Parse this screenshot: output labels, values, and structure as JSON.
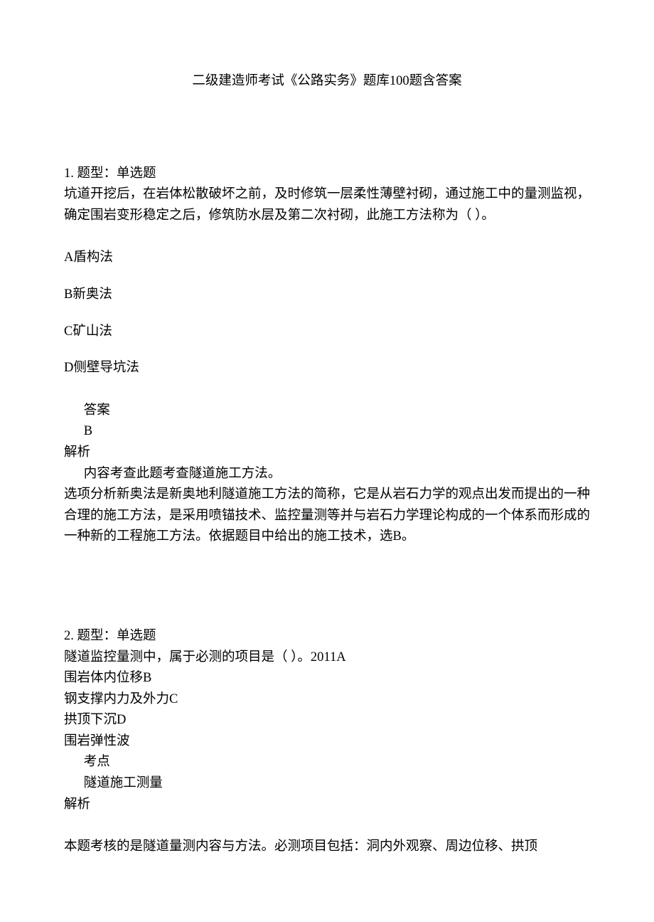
{
  "document": {
    "title": "二级建造师考试《公路实务》题库100题含答案",
    "font_family": "SimSun",
    "font_size_pt": 14,
    "text_color": "#000000",
    "background_color": "#ffffff"
  },
  "questions": [
    {
      "number": "1.",
      "type_label": "题型：单选题",
      "stem": "坑道开挖后，在岩体松散破坏之前，及时修筑一层柔性薄壁衬砌，通过施工中的量测监视，确定围岩变形稳定之后，修筑防水层及第二次衬砌，此施工方法称为（ ）。",
      "options": [
        {
          "letter": "A",
          "text": "盾构法"
        },
        {
          "letter": "B",
          "text": "新奥法"
        },
        {
          "letter": "C",
          "text": "矿山法"
        },
        {
          "letter": "D",
          "text": "侧壁导坑法"
        }
      ],
      "answer_label": "答案",
      "answer_value": "B",
      "analysis_label": "解析",
      "analysis_point": "内容考查此题考查隧道施工方法。",
      "analysis_body": "选项分析新奥法是新奥地利隧道施工方法的简称，它是从岩石力学的观点出发而提出的一种合理的施工方法，是采用喷锚技术、监控量测等并与岩石力学理论构成的一个体系而形成的一种新的工程施工方法。依据题目中给出的施工技术，选B。"
    },
    {
      "number": "2.",
      "type_label": "题型：单选题",
      "stem_line1": "隧道监控量测中，属于必测的项目是（ ）。2011A",
      "inline_options": [
        "围岩体内位移B",
        "钢支撑内力及外力C",
        "拱顶下沉D",
        "围岩弹性波"
      ],
      "kaodian_label": "考点",
      "kaodian_value": "隧道施工测量",
      "analysis_label": "解析",
      "analysis_body_partial": "本题考核的是隧道量测内容与方法。必测项目包括：洞内外观察、周边位移、拱顶"
    }
  ]
}
